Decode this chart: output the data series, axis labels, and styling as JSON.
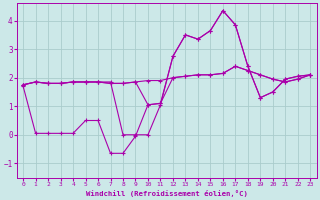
{
  "xlabel": "Windchill (Refroidissement éolien,°C)",
  "background_color": "#cce8e8",
  "grid_color": "#aacccc",
  "line_color": "#aa00aa",
  "xlim": [
    -0.5,
    23.5
  ],
  "ylim": [
    -1.5,
    4.6
  ],
  "yticks": [
    -1,
    0,
    1,
    2,
    3,
    4
  ],
  "xticks": [
    0,
    1,
    2,
    3,
    4,
    5,
    6,
    7,
    8,
    9,
    10,
    11,
    12,
    13,
    14,
    15,
    16,
    17,
    18,
    19,
    20,
    21,
    22,
    23
  ],
  "lines": [
    {
      "x": [
        0,
        1,
        2,
        3,
        4,
        5,
        6,
        7,
        8,
        9,
        10,
        11,
        12,
        13,
        14,
        15,
        16,
        17,
        18,
        19,
        20,
        21,
        22,
        23
      ],
      "y": [
        1.7,
        0.05,
        0.05,
        0.05,
        0.05,
        0.5,
        0.5,
        -0.65,
        -0.65,
        -0.05,
        1.05,
        1.1,
        2.75,
        3.5,
        3.35,
        3.65,
        4.35,
        3.85,
        2.4,
        1.3,
        1.5,
        1.95,
        2.05,
        2.1
      ]
    },
    {
      "x": [
        0,
        1,
        2,
        3,
        4,
        5,
        6,
        7,
        8,
        9,
        10,
        11,
        12,
        13,
        14,
        15,
        16,
        17,
        18,
        19,
        20,
        21,
        22,
        23
      ],
      "y": [
        1.75,
        1.85,
        1.8,
        1.8,
        1.85,
        1.85,
        1.85,
        1.8,
        1.8,
        1.85,
        1.9,
        1.9,
        2.0,
        2.05,
        2.1,
        2.1,
        2.15,
        2.4,
        2.25,
        2.1,
        1.95,
        1.85,
        1.95,
        2.1
      ]
    },
    {
      "x": [
        0,
        1,
        2,
        3,
        4,
        5,
        6,
        7,
        8,
        9,
        10,
        11,
        12,
        13,
        14,
        15,
        16,
        17,
        18,
        19,
        20,
        21,
        22,
        23
      ],
      "y": [
        1.75,
        1.85,
        1.8,
        1.8,
        1.85,
        1.85,
        1.85,
        1.85,
        0.0,
        0.0,
        0.0,
        1.05,
        2.75,
        3.5,
        3.35,
        3.65,
        4.35,
        3.85,
        2.4,
        1.3,
        1.5,
        1.95,
        2.05,
        2.1
      ]
    },
    {
      "x": [
        0,
        1,
        2,
        3,
        4,
        5,
        6,
        7,
        8,
        9,
        10,
        11,
        12,
        13,
        14,
        15,
        16,
        17,
        18,
        19,
        20,
        21,
        22,
        23
      ],
      "y": [
        1.75,
        1.85,
        1.8,
        1.8,
        1.85,
        1.85,
        1.85,
        1.8,
        1.8,
        1.85,
        1.05,
        1.1,
        2.0,
        2.05,
        2.1,
        2.1,
        2.15,
        2.4,
        2.25,
        2.1,
        1.95,
        1.85,
        1.95,
        2.1
      ]
    }
  ]
}
